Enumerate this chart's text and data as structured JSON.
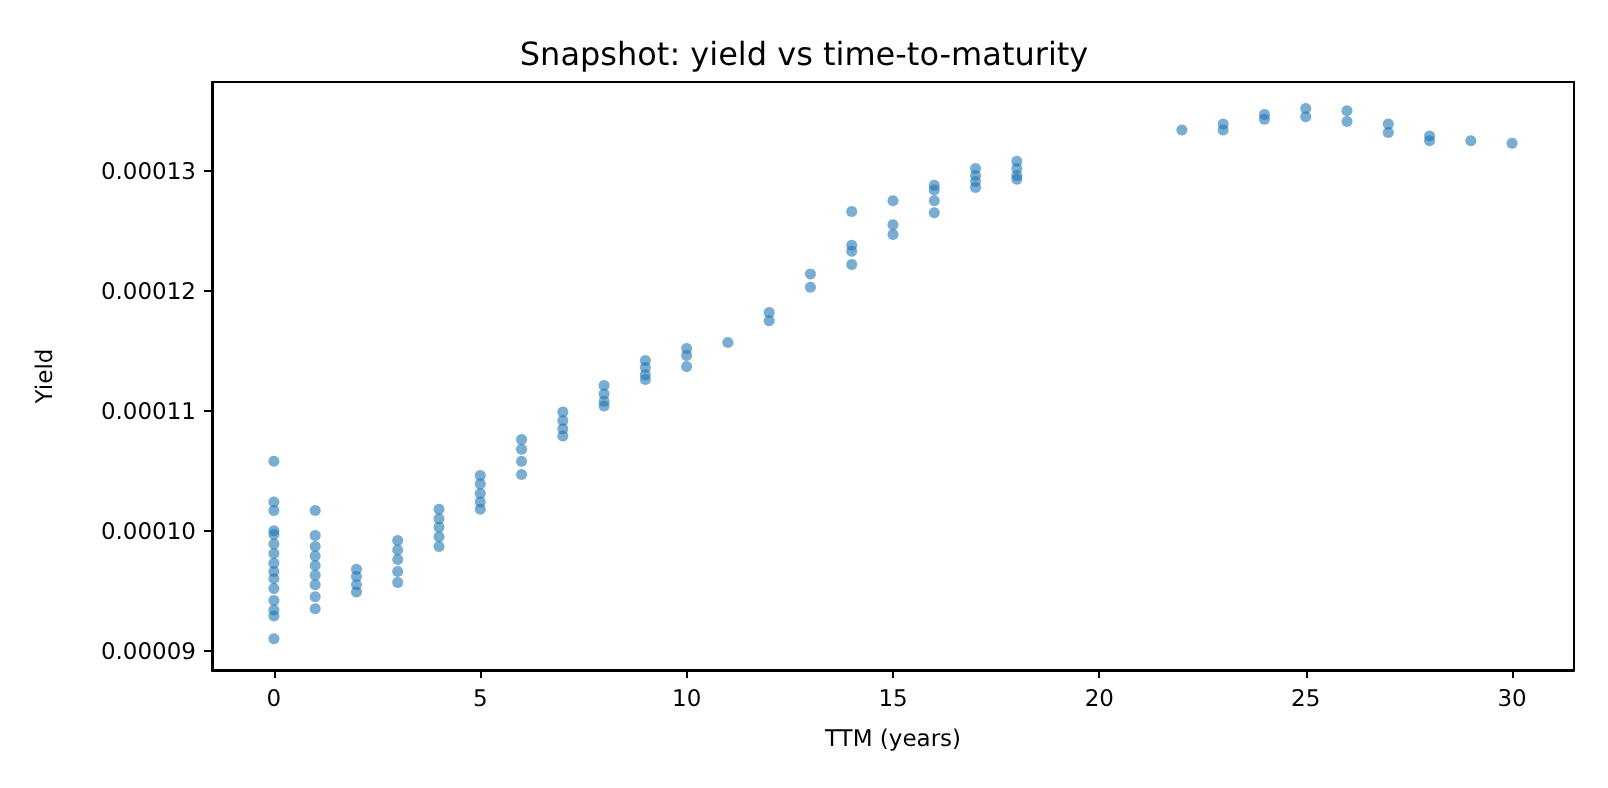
{
  "chart_data": {
    "type": "scatter",
    "title": "Snapshot: yield vs time-to-maturity",
    "xlabel": "TTM (years)",
    "ylabel": "Yield",
    "series": [
      {
        "color": "#1f77b4",
        "x": [
          0,
          0,
          0,
          0,
          0,
          0,
          0,
          0,
          0,
          0,
          0,
          0,
          0,
          0,
          0,
          1,
          1,
          1,
          1,
          1,
          1,
          1,
          1,
          1,
          2,
          2,
          2,
          2,
          3,
          3,
          3,
          3,
          3,
          4,
          4,
          4,
          4,
          4,
          5,
          5,
          5,
          5,
          5,
          6,
          6,
          6,
          6,
          7,
          7,
          7,
          7,
          8,
          8,
          8,
          8,
          9,
          9,
          9,
          9,
          10,
          10,
          10,
          11,
          12,
          12,
          13,
          13,
          14,
          14,
          14,
          14,
          15,
          15,
          15,
          16,
          16,
          16,
          16,
          17,
          17,
          17,
          17,
          18,
          18,
          18,
          18,
          22,
          23,
          23,
          24,
          24,
          25,
          25,
          26,
          26,
          27,
          27,
          28,
          28,
          29,
          30
        ],
        "values": [
          0.0001058,
          0.0001024,
          0.0001017,
          0.0001,
          9.97e-05,
          9.89e-05,
          9.81e-05,
          9.73e-05,
          9.66e-05,
          9.6e-05,
          9.52e-05,
          9.42e-05,
          9.34e-05,
          9.29e-05,
          9.1e-05,
          0.0001017,
          9.96e-05,
          9.87e-05,
          9.79e-05,
          9.71e-05,
          9.63e-05,
          9.55e-05,
          9.45e-05,
          9.35e-05,
          9.68e-05,
          9.62e-05,
          9.55e-05,
          9.49e-05,
          9.92e-05,
          9.84e-05,
          9.76e-05,
          9.66e-05,
          9.57e-05,
          0.0001018,
          0.000101,
          0.0001003,
          9.95e-05,
          9.87e-05,
          0.0001046,
          0.0001039,
          0.0001031,
          0.0001024,
          0.0001018,
          0.0001076,
          0.0001068,
          0.0001058,
          0.0001047,
          0.0001099,
          0.0001092,
          0.0001085,
          0.0001079,
          0.0001121,
          0.0001114,
          0.0001108,
          0.0001104,
          0.0001142,
          0.0001136,
          0.000113,
          0.0001126,
          0.0001152,
          0.0001146,
          0.0001137,
          0.0001157,
          0.0001182,
          0.0001175,
          0.0001214,
          0.0001203,
          0.0001266,
          0.0001238,
          0.0001233,
          0.0001222,
          0.0001275,
          0.0001255,
          0.0001247,
          0.0001288,
          0.0001284,
          0.0001275,
          0.0001265,
          0.0001302,
          0.0001296,
          0.0001291,
          0.0001286,
          0.0001308,
          0.0001302,
          0.0001296,
          0.0001293,
          0.0001334,
          0.0001339,
          0.0001334,
          0.0001347,
          0.0001343,
          0.0001352,
          0.0001345,
          0.000135,
          0.0001341,
          0.0001339,
          0.0001332,
          0.0001329,
          0.0001325,
          0.0001325,
          0.0001323
        ]
      }
    ],
    "xlim": [
      -1.5,
      31.5
    ],
    "xticks": [
      0,
      5,
      10,
      15,
      20,
      25,
      30
    ],
    "ylim": [
      8.84e-05,
      0.0001374
    ],
    "yticks": [
      {
        "value": 9e-05,
        "label": "0.00009"
      },
      {
        "value": 0.0001,
        "label": "0.00010"
      },
      {
        "value": 0.00011,
        "label": "0.00011"
      },
      {
        "value": 0.00012,
        "label": "0.00012"
      },
      {
        "value": 0.00013,
        "label": "0.00013"
      }
    ],
    "marker": "circle",
    "grid": false
  }
}
